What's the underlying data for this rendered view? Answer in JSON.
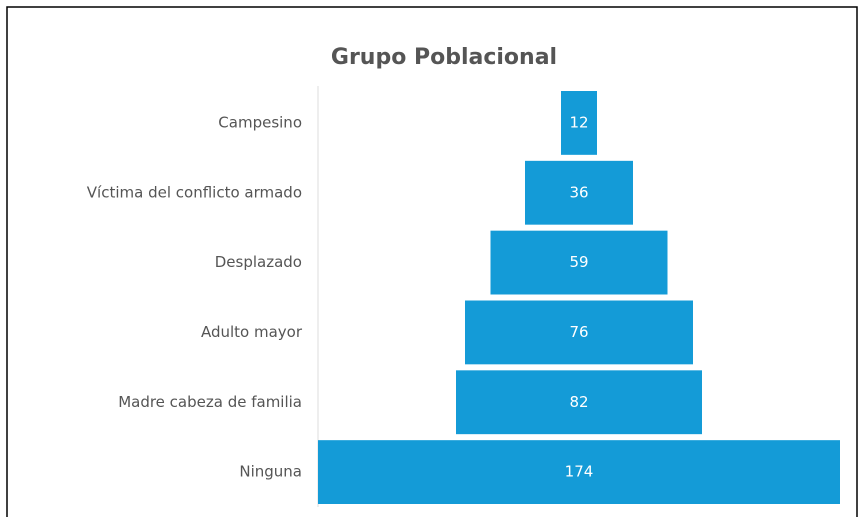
{
  "chart_data": {
    "type": "funnel",
    "title": "Grupo Poblacional",
    "categories": [
      "Campesino",
      "Víctima del conflicto armado",
      "Desplazado",
      "Adulto mayor",
      "Madre cabeza de familia",
      "Ninguna"
    ],
    "values": [
      12,
      36,
      59,
      76,
      82,
      174
    ],
    "color": "#149bd7"
  }
}
